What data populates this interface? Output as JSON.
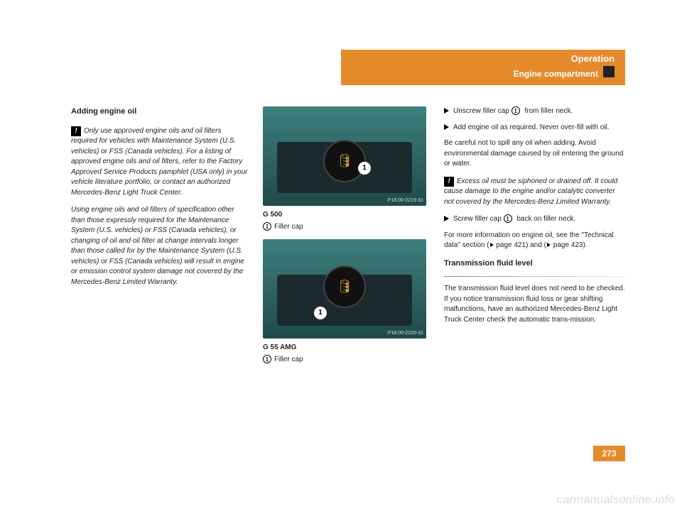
{
  "header": {
    "section": "Operation",
    "subsection": "Engine compartment"
  },
  "col1": {
    "heading": "Adding engine oil",
    "note_icon": "!",
    "note1": "Only use approved engine oils and oil filters required for vehicles with Maintenance System (U.S. vehicles) or FSS (Canada vehicles). For a listing of approved engine oils and oil filters, refer to the Factory Approved Service Products pamphlet (USA only) in your vehicle literature portfolio, or contact an authorized Mercedes-Benz Light Truck Center.",
    "note2": "Using engine oils and oil filters of specification other than those expressly required for the Maintenance System (U.S. vehicles) or FSS (Canada vehicles), or changing of oil and oil filter at change intervals longer than those called for by the Maintenance System (U.S. vehicles) or FSS (Canada vehicles) will result in engine or emission control system damage not covered by the Mercedes-Benz Limited Warranty."
  },
  "col2": {
    "fig1_ref": "P18.00-2219-31",
    "fig1_label": "G 500",
    "fig1_caption_num": "1",
    "fig1_caption": "Filler cap",
    "fig2_ref": "P18.00-2220-31",
    "fig2_label": "G 55 AMG",
    "fig2_caption_num": "1",
    "fig2_caption": "Filler cap"
  },
  "col3": {
    "b1_num": "1",
    "b1": "Unscrew filler cap ",
    "b1_after": " from filler neck.",
    "b2": "Add engine oil as required. Never over-fill with oil.",
    "p1": "Be careful not to spill any oil when adding. Avoid environmental damage caused by oil entering the ground or water.",
    "note_icon": "!",
    "note": "Excess oil must be siphoned or drained off. It could cause damage to the engine and/or catalytic converter not covered by the Mercedes-Benz Limited Warranty.",
    "b3_num": "1",
    "b3": "Screw filler cap ",
    "b3_after": " back on filler neck.",
    "p2a": "For more information on engine oil, see the \"Technical data\" section (",
    "p2_ref1": "page 421",
    "p2b": ") and (",
    "p2_ref2": "page 423",
    "p2c": ").",
    "h4": "Transmission fluid level",
    "p3": "The transmission fluid level does not need to be checked. If you notice transmission fluid loss or gear shifting malfunctions, have an authorized Mercedes-Benz Light Truck Center check the automatic trans-mission."
  },
  "page_number": "273",
  "watermark": "carmanualsonline.info"
}
